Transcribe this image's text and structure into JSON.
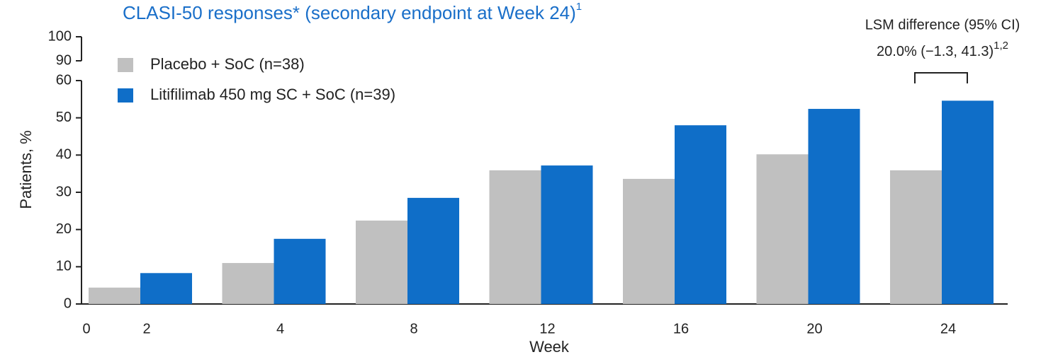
{
  "chart_data": {
    "type": "bar",
    "title": "CLASI-50 responses* (secondary endpoint at Week 24)",
    "title_superscript": "1",
    "xlabel": "Week",
    "ylabel": "Patients, %",
    "x_start_label": "0",
    "categories": [
      "2",
      "4",
      "8",
      "12",
      "16",
      "20",
      "24"
    ],
    "series": [
      {
        "name": "Placebo + SoC (n=38)",
        "color": "#c0c0c0",
        "values": [
          4.4,
          11,
          22.4,
          35.9,
          33.6,
          40.2,
          35.9
        ]
      },
      {
        "name": "Litifilimab 450 mg SC + SoC (n=39)",
        "color": "#0f6ec8",
        "values": [
          8.3,
          17.5,
          28.5,
          37.2,
          48,
          52.4,
          54.6
        ]
      }
    ],
    "ylim": [
      0,
      100
    ],
    "axis_break": [
      60,
      90
    ],
    "yticks": [
      0,
      10,
      20,
      30,
      40,
      50,
      60,
      90,
      100
    ],
    "legend": "upper left",
    "annotation": {
      "heading": "LSM difference (95% CI)",
      "text": "20.0% (−1.3, 41.3)",
      "superscript": "1,2"
    }
  }
}
